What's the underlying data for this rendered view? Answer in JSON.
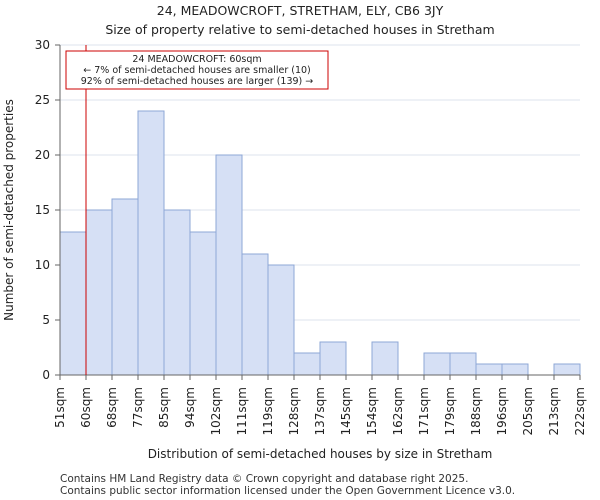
{
  "title_line1": "24, MEADOWCROFT, STRETHAM, ELY, CB6 3JY",
  "title_line2": "Size of property relative to semi-detached houses in Stretham",
  "footer_line1": "Contains HM Land Registry data © Crown copyright and database right 2025.",
  "footer_line2": "Contains public sector information licensed under the Open Government Licence v3.0.",
  "colors": {
    "bar_fill": "#d6e0f5",
    "bar_stroke": "#8ea7d6",
    "marker": "#cc0000",
    "grid": "#dde3ee",
    "axis": "#666666"
  },
  "chart_data": {
    "type": "bar",
    "title": "Size of property relative to semi-detached houses in Stretham",
    "xlabel": "Distribution of semi-detached houses by size in Stretham",
    "ylabel": "Number of semi-detached properties",
    "ylim": [
      0,
      30
    ],
    "yticks": [
      0,
      5,
      10,
      15,
      20,
      25,
      30
    ],
    "grid": true,
    "tick_labels": [
      "51sqm",
      "60sqm",
      "68sqm",
      "77sqm",
      "85sqm",
      "94sqm",
      "102sqm",
      "111sqm",
      "119sqm",
      "128sqm",
      "137sqm",
      "145sqm",
      "154sqm",
      "162sqm",
      "171sqm",
      "179sqm",
      "188sqm",
      "196sqm",
      "205sqm",
      "213sqm",
      "222sqm"
    ],
    "values": [
      13,
      15,
      16,
      24,
      15,
      13,
      20,
      11,
      10,
      2,
      3,
      0,
      3,
      0,
      2,
      2,
      1,
      1,
      0,
      1
    ],
    "marker": {
      "value_sqm": 60,
      "bin_position": 1,
      "label_lines": [
        "24 MEADOWCROFT: 60sqm",
        "← 7% of semi-detached houses are smaller (10)",
        "92% of semi-detached houses are larger (139) →"
      ]
    }
  }
}
